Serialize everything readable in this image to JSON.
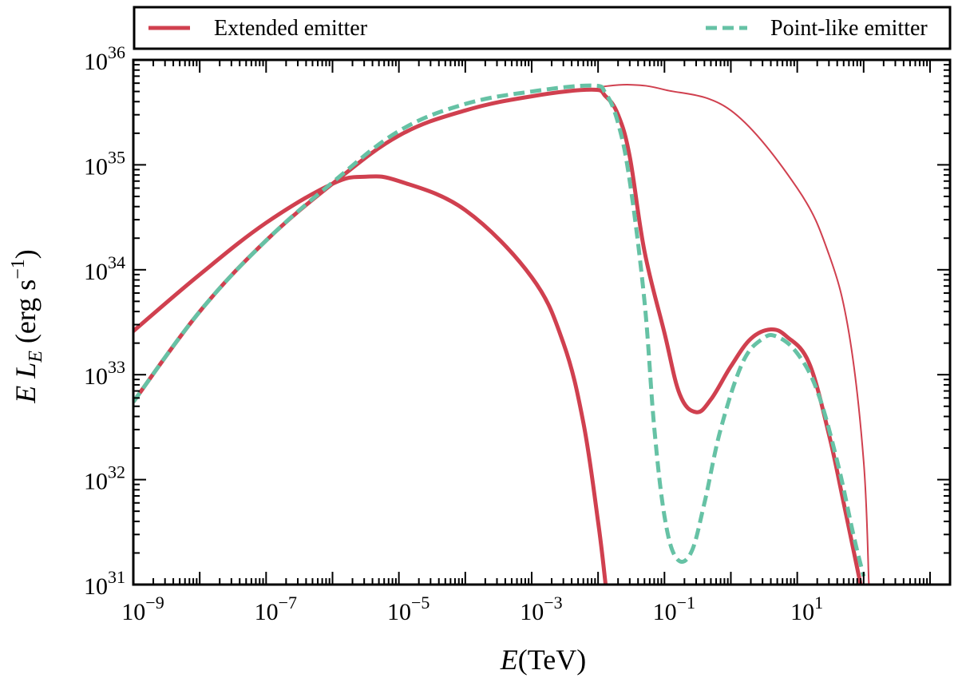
{
  "chart_data": {
    "type": "line",
    "x_scale": "log",
    "y_scale": "log",
    "xlim": [
      1e-09,
      2000
    ],
    "ylim": [
      1e+31,
      1e+36
    ],
    "xlabel_italic": "E",
    "xlabel_rest": "(TeV)",
    "ylabel": "E L_E (erg s^-1)",
    "x_ticks": [
      {
        "value": 1e-09,
        "base": "10",
        "exp": "−9"
      },
      {
        "value": 1e-07,
        "base": "10",
        "exp": "−7"
      },
      {
        "value": 1e-05,
        "base": "10",
        "exp": "−5"
      },
      {
        "value": 0.001,
        "base": "10",
        "exp": "−3"
      },
      {
        "value": 0.1,
        "base": "10",
        "exp": "−1"
      },
      {
        "value": 10,
        "base": "10",
        "exp": "1"
      }
    ],
    "y_ticks": [
      {
        "value": 1e+31,
        "base": "10",
        "exp": "31"
      },
      {
        "value": 1e+32,
        "base": "10",
        "exp": "32"
      },
      {
        "value": 1e+33,
        "base": "10",
        "exp": "33"
      },
      {
        "value": 1e+34,
        "base": "10",
        "exp": "34"
      },
      {
        "value": 1e+35,
        "base": "10",
        "exp": "35"
      },
      {
        "value": 1e+36,
        "base": "10",
        "exp": "36"
      }
    ],
    "legend": {
      "position": "above plot",
      "entries": [
        {
          "label": "Extended emitter",
          "color": "#d0404f",
          "style": "solid"
        },
        {
          "label": "Point-like emitter",
          "color": "#66c2a5",
          "style": "dashed"
        }
      ]
    },
    "series": [
      {
        "color": "#d0404f",
        "style": "solid",
        "width": "thick",
        "points": [
          [
            1e-09,
            2.6e+33
          ],
          [
            1e-08,
            9e+33
          ],
          [
            1e-07,
            2.8e+34
          ],
          [
            1e-06,
            6.6e+34
          ],
          [
            3.2e-06,
            7.7e+34
          ],
          [
            1e-05,
            7e+34
          ],
          [
            0.0001,
            3.7e+34
          ],
          [
            0.001,
            8.5e+33
          ],
          [
            0.003,
            2e+33
          ],
          [
            0.006,
            3.5e+32
          ],
          [
            0.01,
            4e+31
          ],
          [
            0.013,
            1e+31
          ]
        ]
      },
      {
        "color": "#d0404f",
        "style": "solid",
        "width": "thick",
        "points": [
          [
            1e-09,
            5.5e+32
          ],
          [
            1e-08,
            4e+33
          ],
          [
            1e-07,
            1.9e+34
          ],
          [
            1e-06,
            6.6e+34
          ],
          [
            1e-05,
            1.9e+35
          ],
          [
            0.0001,
            3.3e+35
          ],
          [
            0.001,
            4.5e+35
          ],
          [
            0.008,
            5.2e+35
          ],
          [
            0.013,
            4.5e+35
          ],
          [
            0.02,
            3e+35
          ],
          [
            0.03,
            1.2e+35
          ],
          [
            0.05,
            1.5e+34
          ],
          [
            0.1,
            2.5e+33
          ],
          [
            0.17,
            6.5e+32
          ],
          [
            0.3,
            4.4e+32
          ],
          [
            0.5,
            5.8e+32
          ],
          [
            1,
            1.2e+33
          ],
          [
            2,
            2.2e+33
          ],
          [
            4,
            2.7e+33
          ],
          [
            7,
            2.3e+33
          ],
          [
            15,
            1.3e+33
          ],
          [
            30,
            2.7e+32
          ],
          [
            50,
            6e+31
          ],
          [
            90,
            1e+31
          ]
        ]
      },
      {
        "color": "#d0404f",
        "style": "solid",
        "width": "thin",
        "points": [
          [
            0.01,
            5.5e+35
          ],
          [
            0.03,
            5.8e+35
          ],
          [
            0.1,
            5.2e+35
          ],
          [
            1,
            3.3e+35
          ],
          [
            10,
            6e+34
          ],
          [
            30,
            1.4e+34
          ],
          [
            60,
            2.5e+33
          ],
          [
            100,
            1.5e+32
          ],
          [
            120,
            1e+31
          ]
        ]
      },
      {
        "color": "#66c2a5",
        "style": "dashed",
        "width": "thick",
        "points": [
          [
            1e-09,
            5.5e+32
          ],
          [
            1e-08,
            4e+33
          ],
          [
            1e-07,
            1.9e+34
          ],
          [
            1e-06,
            6.8e+34
          ],
          [
            1e-05,
            2.1e+35
          ],
          [
            0.0001,
            3.8e+35
          ],
          [
            0.001,
            5e+35
          ],
          [
            0.008,
            5.7e+35
          ],
          [
            0.013,
            4.8e+35
          ],
          [
            0.02,
            2.5e+35
          ],
          [
            0.03,
            7e+34
          ],
          [
            0.05,
            5e+33
          ],
          [
            0.07,
            3.2e+32
          ],
          [
            0.1,
            4.5e+31
          ],
          [
            0.15,
            1.8e+31
          ],
          [
            0.25,
            2e+31
          ],
          [
            0.4,
            6e+31
          ],
          [
            0.7,
            3e+32
          ],
          [
            1.5,
            1.3e+33
          ],
          [
            3,
            2.2e+33
          ],
          [
            5,
            2.3e+33
          ],
          [
            10,
            1.6e+33
          ],
          [
            20,
            7e+32
          ],
          [
            40,
            1.5e+32
          ],
          [
            70,
            3e+31
          ],
          [
            100,
            1.2e+31
          ]
        ]
      }
    ]
  }
}
